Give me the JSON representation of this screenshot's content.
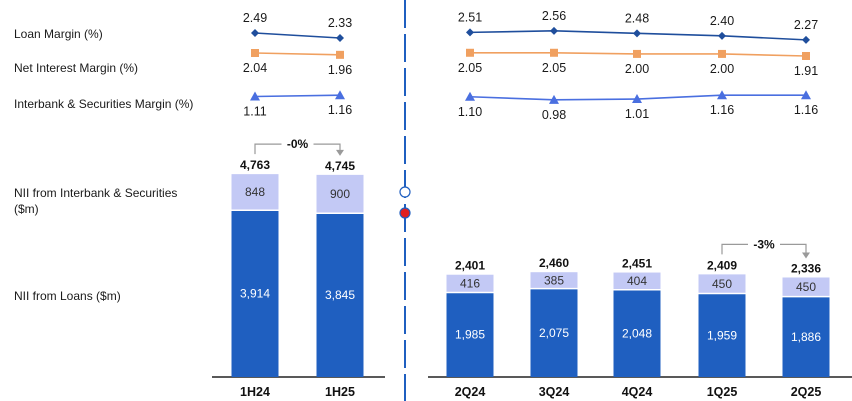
{
  "legend": {
    "loan_margin": "Loan Margin (%)",
    "nim": "Net Interest Margin (%)",
    "ib_margin": "Interbank & Securities Margin (%)",
    "nii_ib_line1": "NII from Interbank & Securities",
    "nii_ib_line2": "($m)",
    "nii_loans": "NII from Loans ($m)"
  },
  "colors": {
    "loans_bar": "#1f5fc0",
    "ib_bar": "#c3c9f5",
    "loan_margin": "#1f4e9c",
    "nim": "#f0a060",
    "ib_margin": "#4a6fe0",
    "divider": "#1f5fc0"
  },
  "chart_data": [
    {
      "type": "bar",
      "stacked": true,
      "categories": [
        "1H24",
        "1H25"
      ],
      "series": [
        {
          "name": "NII from Loans ($m)",
          "values": [
            3914,
            3845
          ]
        },
        {
          "name": "NII from Interbank & Securities ($m)",
          "values": [
            848,
            900
          ]
        }
      ],
      "totals": [
        4763,
        4745
      ],
      "change_annotation": {
        "text": "-0%",
        "from": "1H24",
        "to": "1H25"
      },
      "margins": [
        {
          "name": "Loan Margin (%)",
          "values": [
            2.49,
            2.33
          ]
        },
        {
          "name": "Net Interest Margin (%)",
          "values": [
            2.04,
            1.96
          ]
        },
        {
          "name": "Interbank & Securities Margin (%)",
          "values": [
            1.11,
            1.16
          ]
        }
      ]
    },
    {
      "type": "bar",
      "stacked": true,
      "categories": [
        "2Q24",
        "3Q24",
        "4Q24",
        "1Q25",
        "2Q25"
      ],
      "series": [
        {
          "name": "NII from Loans ($m)",
          "values": [
            1985,
            2075,
            2048,
            1959,
            1886
          ]
        },
        {
          "name": "NII from Interbank & Securities ($m)",
          "values": [
            416,
            385,
            404,
            450,
            450
          ]
        }
      ],
      "totals": [
        2401,
        2460,
        2451,
        2409,
        2336
      ],
      "change_annotation": {
        "text": "-3%",
        "from": "1Q25",
        "to": "2Q25"
      },
      "margins": [
        {
          "name": "Loan Margin (%)",
          "values": [
            2.51,
            2.56,
            2.48,
            2.4,
            2.27
          ]
        },
        {
          "name": "Net Interest Margin (%)",
          "values": [
            2.05,
            2.05,
            2.0,
            2.0,
            1.91
          ]
        },
        {
          "name": "Interbank & Securities Margin (%)",
          "values": [
            1.1,
            0.98,
            1.01,
            1.16,
            1.16
          ]
        }
      ]
    }
  ]
}
